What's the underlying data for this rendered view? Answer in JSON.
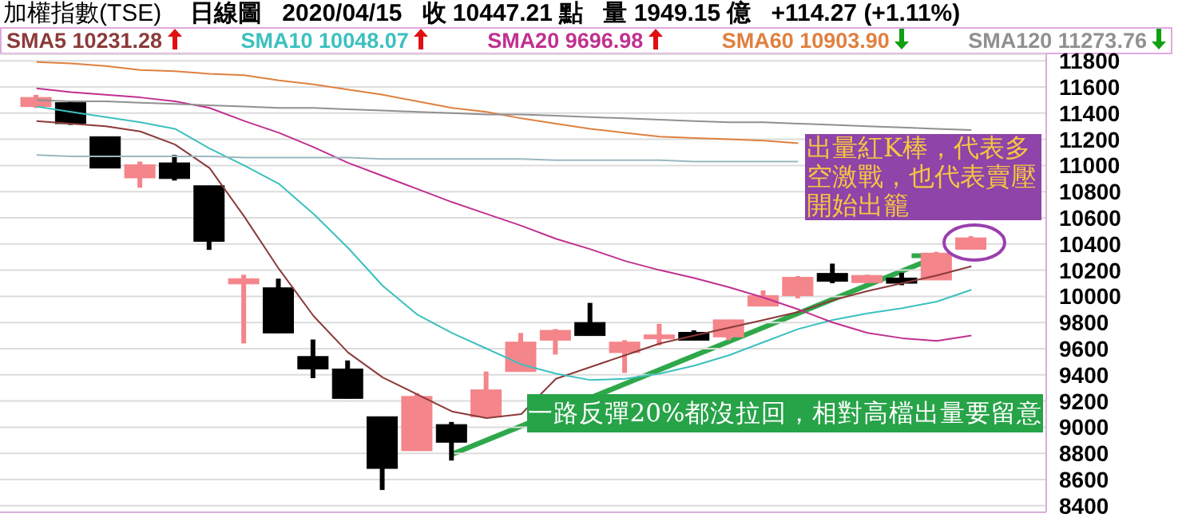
{
  "chart_data": {
    "type": "candlestick",
    "title": "加權指數(TSE)",
    "subtitle": "日線圖   2020/04/15   收 10447.21 點   量 1949.15 億   +114.27 (+1.11%)",
    "categories": [
      null,
      null,
      null,
      null,
      null,
      null,
      null,
      null,
      null,
      null,
      null,
      null,
      null,
      null,
      null,
      null,
      null,
      null,
      null,
      null,
      null,
      null,
      null,
      null,
      null,
      null,
      null,
      null
    ],
    "ohlc": [
      [
        11450,
        11540,
        11440,
        11520
      ],
      [
        11480,
        11490,
        11310,
        11320
      ],
      [
        11220,
        11220,
        10980,
        10980
      ],
      [
        10905,
        11030,
        10830,
        11006
      ],
      [
        11020,
        11080,
        10885,
        10900
      ],
      [
        10845,
        10845,
        10355,
        10420
      ],
      [
        10095,
        10165,
        9640,
        10135
      ],
      [
        10065,
        10135,
        9720,
        9720
      ],
      [
        9540,
        9670,
        9375,
        9445
      ],
      [
        9445,
        9510,
        9220,
        9220
      ],
      [
        9080,
        9080,
        8520,
        8685
      ],
      [
        8820,
        9260,
        8820,
        9235
      ],
      [
        9020,
        9040,
        8745,
        8885
      ],
      [
        9080,
        9425,
        9080,
        9285
      ],
      [
        9425,
        9720,
        9425,
        9650
      ],
      [
        9665,
        9750,
        9555,
        9740
      ],
      [
        9800,
        9950,
        9700,
        9700
      ],
      [
        9570,
        9665,
        9415,
        9650
      ],
      [
        9675,
        9790,
        9625,
        9705
      ],
      [
        9725,
        9740,
        9665,
        9665
      ],
      [
        9690,
        9820,
        9665,
        9820
      ],
      [
        9925,
        10045,
        9925,
        10005
      ],
      [
        10005,
        10155,
        9985,
        10145
      ],
      [
        10175,
        10250,
        10100,
        10115
      ],
      [
        10105,
        10165,
        10105,
        10160
      ],
      [
        10140,
        10180,
        10085,
        10100
      ],
      [
        10125,
        10340,
        10125,
        10330
      ],
      [
        10360,
        10460,
        10360,
        10447
      ]
    ],
    "colors": [
      "#f4858a",
      "#000000",
      "#000000",
      "#f4858a",
      "#000000",
      "#000000",
      "#f4858a",
      "#000000",
      "#000000",
      "#000000",
      "#000000",
      "#f4858a",
      "#000000",
      "#f4858a",
      "#f4858a",
      "#f4858a",
      "#000000",
      "#f4858a",
      "#f4858a",
      "#000000",
      "#f4858a",
      "#f4858a",
      "#f4858a",
      "#000000",
      "#f4858a",
      "#000000",
      "#f4858a",
      "#f4858a"
    ],
    "series": [
      {
        "type": "line",
        "name": "SMA5 10231.28",
        "color": "#8b3a3a",
        "values": [
          11340,
          11320,
          11300,
          11260,
          11160,
          10980,
          10610,
          10210,
          9850,
          9570,
          9380,
          9250,
          9120,
          9070,
          9100,
          9370,
          9460,
          9550,
          9640,
          9700,
          9760,
          9820,
          9880,
          9970,
          10040,
          10100,
          10160,
          10230
        ]
      },
      {
        "type": "line",
        "name": "SMA10 10048.07",
        "color": "#3cc0c0",
        "values": [
          11450,
          11410,
          11370,
          11330,
          11280,
          11130,
          11000,
          10860,
          10630,
          10370,
          10080,
          9860,
          9720,
          9600,
          9480,
          9410,
          9360,
          9370,
          9410,
          9470,
          9550,
          9650,
          9750,
          9820,
          9870,
          9910,
          9960,
          10050
        ]
      },
      {
        "type": "line",
        "name": "SMA20 9696.98",
        "color": "#c03090",
        "values": [
          11590,
          11560,
          11540,
          11520,
          11490,
          11440,
          11340,
          11250,
          11140,
          11020,
          10920,
          10820,
          10720,
          10630,
          10540,
          10440,
          10360,
          10270,
          10200,
          10140,
          10070,
          9990,
          9900,
          9800,
          9720,
          9680,
          9660,
          9700
        ]
      },
      {
        "type": "line",
        "name": "SMA60 10903.90",
        "color": "#e08040",
        "values": [
          11790,
          11780,
          11760,
          11730,
          11720,
          11700,
          11690,
          11650,
          11620,
          11580,
          11540,
          11490,
          11440,
          11410,
          11360,
          11320,
          11280,
          11250,
          11220,
          11210,
          11200,
          11190,
          11170,
          null,
          null,
          null,
          null,
          null
        ]
      },
      {
        "type": "line",
        "name": "SMA120 11273.76",
        "color": "#909090",
        "values": [
          11500,
          11490,
          11490,
          11480,
          11470,
          11460,
          11450,
          11440,
          11440,
          11430,
          11420,
          11410,
          11400,
          11390,
          11390,
          11380,
          11370,
          11360,
          11350,
          11340,
          11330,
          11330,
          11320,
          11310,
          11300,
          11290,
          11280,
          11270
        ]
      },
      {
        "type": "line",
        "color": "#9ab8c0",
        "values": [
          11080,
          11070,
          11070,
          11070,
          11070,
          11070,
          11060,
          11060,
          11060,
          11060,
          11050,
          11050,
          11050,
          11050,
          11050,
          11040,
          11040,
          11040,
          11040,
          11030,
          11030,
          11030,
          11030,
          null,
          null,
          null,
          null,
          null
        ]
      }
    ],
    "ylim": [
      8350,
      11850
    ],
    "yticks": [
      8400,
      8600,
      8800,
      9000,
      9200,
      9400,
      9600,
      9800,
      10000,
      10200,
      10400,
      10600,
      10800,
      11000,
      11200,
      11400,
      11600,
      11800
    ],
    "grid": "y",
    "legend": "top",
    "tick_labels": "y",
    "marker": "none",
    "annotations": [
      "出量紅K棒，代表多空激戰，也代表賣壓開始出籠",
      "一路反彈20%都沒拉回，相對高檔出量要留意"
    ]
  }
}
